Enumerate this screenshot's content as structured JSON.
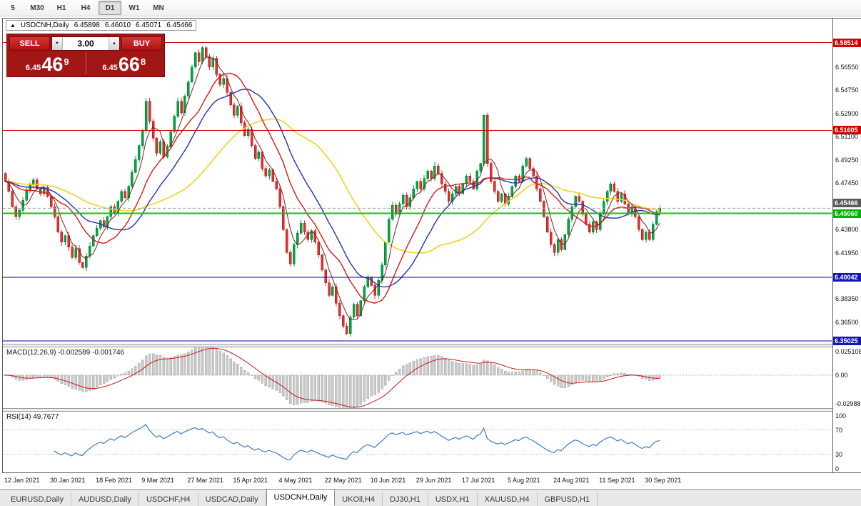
{
  "toolbar": {
    "periods": [
      {
        "label": "5"
      },
      {
        "label": "M30"
      },
      {
        "label": "H1"
      },
      {
        "label": "H4"
      },
      {
        "label": "D1",
        "active": true
      },
      {
        "label": "W1"
      },
      {
        "label": "MN"
      }
    ]
  },
  "info_bar": {
    "arrow_icon": "▲",
    "symbol": "USDCNH,Daily",
    "open": "6.45898",
    "high": "6.46010",
    "low": "6.45071",
    "close": "6.45466"
  },
  "trade_panel": {
    "sell_label": "SELL",
    "buy_label": "BUY",
    "volume": "3.00",
    "down_icon": "▼",
    "up_icon": "▲",
    "bid_prefix": "6.45",
    "bid_big": "46",
    "bid_sup": "9",
    "ask_prefix": "6.45",
    "ask_big": "66",
    "ask_sup": "8"
  },
  "chart_data": {
    "type": "candlestick",
    "symbol": "USDCNH",
    "timeframe": "Daily",
    "first_open": 6.482,
    "closes": [
      6.476,
      6.468,
      6.456,
      6.448,
      6.453,
      6.461,
      6.469,
      6.473,
      6.477,
      6.47,
      6.466,
      6.471,
      6.464,
      6.456,
      6.448,
      6.436,
      6.428,
      6.433,
      6.424,
      6.416,
      6.423,
      6.412,
      6.408,
      6.417,
      6.425,
      6.433,
      6.439,
      6.445,
      6.44,
      6.448,
      6.456,
      6.451,
      6.46,
      6.468,
      6.463,
      6.472,
      6.483,
      6.493,
      6.504,
      6.516,
      6.539,
      6.523,
      6.51,
      6.498,
      6.507,
      6.495,
      6.503,
      6.515,
      6.527,
      6.539,
      6.53,
      6.543,
      6.554,
      6.566,
      6.577,
      6.57,
      6.581,
      6.574,
      6.566,
      6.573,
      6.56,
      6.552,
      6.557,
      6.546,
      6.536,
      6.528,
      6.535,
      6.522,
      6.512,
      6.517,
      6.504,
      6.494,
      6.499,
      6.486,
      6.48,
      6.485,
      6.476,
      6.47,
      6.456,
      6.438,
      6.42,
      6.411,
      6.426,
      6.435,
      6.443,
      6.436,
      6.43,
      6.437,
      6.428,
      6.418,
      6.406,
      6.396,
      6.386,
      6.393,
      6.38,
      6.37,
      6.362,
      6.356,
      6.369,
      6.379,
      6.37,
      6.382,
      6.393,
      6.4,
      6.394,
      6.386,
      6.398,
      6.41,
      6.428,
      6.446,
      6.457,
      6.45,
      6.458,
      6.465,
      6.456,
      6.463,
      6.47,
      6.476,
      6.47,
      6.478,
      6.484,
      6.478,
      6.488,
      6.482,
      6.474,
      6.468,
      6.46,
      6.466,
      6.472,
      6.466,
      6.474,
      6.48,
      6.476,
      6.47,
      6.484,
      6.49,
      6.528,
      6.49,
      6.476,
      6.468,
      6.46,
      6.466,
      6.458,
      6.464,
      6.472,
      6.48,
      6.476,
      6.488,
      6.494,
      6.486,
      6.48,
      6.47,
      6.46,
      6.448,
      6.436,
      6.426,
      6.42,
      6.43,
      6.422,
      6.434,
      6.446,
      6.456,
      6.464,
      6.46,
      6.45,
      6.442,
      6.436,
      6.444,
      6.438,
      6.45,
      6.46,
      6.468,
      6.474,
      6.468,
      6.46,
      6.466,
      6.458,
      6.45,
      6.456,
      6.448,
      6.438,
      6.43,
      6.436,
      6.43,
      6.442,
      6.452,
      6.4547
    ],
    "candle_colors": {
      "up": "#00a843",
      "up_border": "#00742e",
      "down": "#e33030",
      "down_border": "#aa1111"
    },
    "price_axis": {
      "min": 6.348,
      "max": 6.604,
      "ticks": [
        6.5655,
        6.5475,
        6.529,
        6.511,
        6.4925,
        6.4745,
        6.438,
        6.4195,
        6.3835,
        6.365
      ]
    },
    "hlines": [
      {
        "price": 6.58514,
        "label": "6.58514",
        "color": "#d40000",
        "badge": "#d40000",
        "width": 1
      },
      {
        "price": 6.51605,
        "label": "6.51605",
        "color": "#d40000",
        "badge": "#d40000",
        "width": 1
      },
      {
        "price": 6.4506,
        "label": "6.45060",
        "color": "#00cc00",
        "badge": "#00b400",
        "width": 2
      },
      {
        "price": 6.40042,
        "label": "6.40042",
        "color": "#0000a8",
        "badge": "#1616b4",
        "width": 1
      },
      {
        "price": 6.35025,
        "label": "6.35025",
        "color": "#0000a8",
        "badge": "#1616b4",
        "width": 1
      }
    ],
    "current_price": {
      "value": 6.45466,
      "label": "6.45466",
      "color": "#9a9a9a",
      "badge": "#5a5a5a"
    },
    "moving_averages": [
      {
        "name": "ma-slow-yellow",
        "period": 42,
        "color": "#f5d020",
        "width": 1.6
      },
      {
        "name": "ma-mid-blue",
        "period": 22,
        "color": "#2330b4",
        "width": 1.4
      },
      {
        "name": "ma-fast-red",
        "period": 14,
        "color": "#e01616",
        "width": 1.4
      },
      {
        "name": "ma-xfast-maroon",
        "period": 5,
        "color": "#7e1e1e",
        "width": 1
      }
    ],
    "date_labels": [
      "12 Jan 2021",
      "30 Jan 2021",
      "18 Feb 2021",
      "9 Mar 2021",
      "27 Mar 2021",
      "15 Apr 2021",
      "4 May 2021",
      "22 May 2021",
      "10 Jun 2021",
      "29 Jun 2021",
      "17 Jul 2021",
      "5 Aug 2021",
      "24 Aug 2021",
      "11 Sep 2021",
      "30 Sep 2021"
    ],
    "label_every": 13,
    "macd": {
      "label": "MACD(12,26,9)",
      "value_main": "-0.002589",
      "value_signal": "-0.001746",
      "params": [
        12,
        26,
        9
      ],
      "ylim": [
        -0.0299,
        0.0251
      ],
      "scale_labels": [
        "0.025108",
        "0.00",
        "-0.02988"
      ],
      "hist_color": "#c9c9c9",
      "hist_border": "#ababab",
      "signal_color": "#cc1616"
    },
    "rsi": {
      "label": "RSI(14)",
      "value": "49.7677",
      "period": 14,
      "levels": [
        30,
        70
      ],
      "scale_labels": [
        "100",
        "70",
        "30",
        "0"
      ],
      "color": "#3f7cc4",
      "level_color": "#b6b6b6"
    }
  },
  "tabs": [
    {
      "label": "EURUSD,Daily"
    },
    {
      "label": "AUDUSD,Daily"
    },
    {
      "label": "USDCHF,H4"
    },
    {
      "label": "USDCAD,Daily"
    },
    {
      "label": "USDCNH,Daily",
      "active": true
    },
    {
      "label": "UKOil,H4"
    },
    {
      "label": "DJ30,H1"
    },
    {
      "label": "USDX,H1"
    },
    {
      "label": "XAUUSD,H4"
    },
    {
      "label": "GBPUSD,H1"
    }
  ]
}
